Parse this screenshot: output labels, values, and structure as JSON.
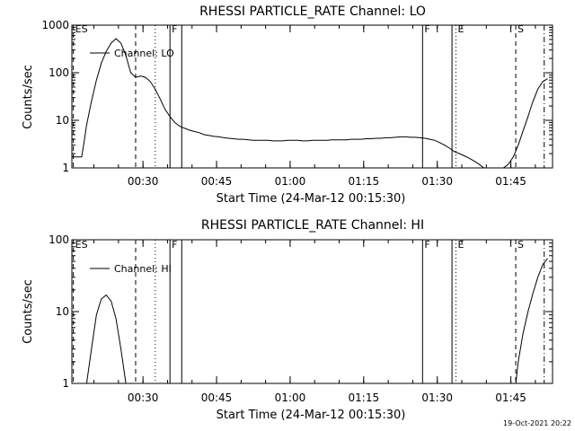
{
  "chart_data": [
    {
      "type": "line",
      "title": "RHESSI PARTICLE_RATE Channel: LO",
      "xlabel": "Start Time (24-Mar-12 00:15:30)",
      "ylabel": "Counts/sec",
      "yscale": "log",
      "ylim": [
        1,
        1000
      ],
      "xlim_min": [
        0,
        98
      ],
      "y_ticks": [
        {
          "label": "1",
          "value": 1
        },
        {
          "label": "10",
          "value": 10
        },
        {
          "label": "100",
          "value": 100
        },
        {
          "label": "1000",
          "value": 1000
        }
      ],
      "x_ticks": [
        {
          "label": "00:30",
          "value": 14.5
        },
        {
          "label": "00:45",
          "value": 29.5
        },
        {
          "label": "01:00",
          "value": 44.5
        },
        {
          "label": "01:15",
          "value": 59.5
        },
        {
          "label": "01:30",
          "value": 74.5
        },
        {
          "label": "01:45",
          "value": 89.5
        }
      ],
      "legend": "Channel: LO",
      "series": [
        {
          "name": "Channel: LO",
          "x": [
            0,
            1,
            2,
            2.5,
            3,
            4,
            5,
            6,
            7,
            8,
            9,
            10,
            11,
            12,
            13,
            14,
            15,
            16,
            17,
            18,
            19,
            20,
            21,
            22,
            23,
            24,
            25,
            26,
            27,
            28,
            29,
            30,
            31,
            32,
            33,
            34,
            35,
            36,
            37,
            38,
            39,
            40,
            41,
            42,
            43,
            44,
            45,
            46,
            47,
            48,
            49,
            50,
            51,
            52,
            53,
            54,
            55,
            56,
            57,
            58,
            59,
            60,
            61,
            62,
            63,
            64,
            65,
            66,
            67,
            68,
            69,
            70,
            71,
            72,
            73,
            74,
            75,
            76,
            77,
            78,
            79,
            80,
            81,
            82,
            83,
            84,
            85,
            86,
            87,
            88,
            89,
            90,
            91,
            92,
            93,
            94,
            95,
            96,
            97
          ],
          "y": [
            1.7,
            1.7,
            1.7,
            3.5,
            8,
            25,
            70,
            160,
            280,
            420,
            520,
            420,
            230,
            100,
            80,
            85,
            80,
            65,
            45,
            28,
            17,
            12,
            9,
            7.5,
            6.8,
            6.2,
            5.8,
            5.5,
            5.0,
            4.8,
            4.6,
            4.5,
            4.3,
            4.2,
            4.1,
            4.0,
            4.0,
            3.9,
            3.8,
            3.8,
            3.8,
            3.8,
            3.7,
            3.7,
            3.7,
            3.8,
            3.8,
            3.8,
            3.7,
            3.7,
            3.8,
            3.8,
            3.8,
            3.8,
            3.9,
            3.9,
            3.9,
            3.9,
            4.0,
            4.0,
            4.0,
            4.1,
            4.1,
            4.2,
            4.2,
            4.3,
            4.3,
            4.4,
            4.5,
            4.5,
            4.4,
            4.4,
            4.3,
            4.2,
            4.0,
            3.8,
            3.4,
            3.0,
            2.6,
            2.2,
            2.0,
            1.8,
            1.6,
            1.4,
            1.2,
            1.0,
            1.0,
            1.0,
            1.0,
            1.0,
            1.2,
            1.7,
            3.0,
            6.0,
            12,
            25,
            45,
            65,
            75
          ]
        }
      ],
      "markers": [
        {
          "label": "ES",
          "x": 0.3,
          "style": "dashed"
        },
        {
          "label": "",
          "x": 13.0,
          "style": "dashed"
        },
        {
          "label": "",
          "x": 17.0,
          "style": "dotted"
        },
        {
          "label": "F",
          "x": 20.0,
          "style": "solid"
        },
        {
          "label": "",
          "x": 22.4,
          "style": "solid"
        },
        {
          "label": "F",
          "x": 71.5,
          "style": "solid"
        },
        {
          "label": "",
          "x": 77.5,
          "style": "solid"
        },
        {
          "label": "E",
          "x": 78.3,
          "style": "dotted"
        },
        {
          "label": "S",
          "x": 90.5,
          "style": "dashed"
        },
        {
          "label": "",
          "x": 96.3,
          "style": "dashdot"
        }
      ]
    },
    {
      "type": "line",
      "title": "RHESSI PARTICLE_RATE Channel: HI",
      "xlabel": "Start Time (24-Mar-12 00:15:30)",
      "ylabel": "Counts/sec",
      "yscale": "log",
      "ylim": [
        1,
        100
      ],
      "xlim_min": [
        0,
        98
      ],
      "y_ticks": [
        {
          "label": "1",
          "value": 1
        },
        {
          "label": "10",
          "value": 10
        },
        {
          "label": "100",
          "value": 100
        }
      ],
      "x_ticks": [
        {
          "label": "00:30",
          "value": 14.5
        },
        {
          "label": "00:45",
          "value": 29.5
        },
        {
          "label": "01:00",
          "value": 44.5
        },
        {
          "label": "01:15",
          "value": 59.5
        },
        {
          "label": "01:30",
          "value": 74.5
        },
        {
          "label": "01:45",
          "value": 89.5
        }
      ],
      "legend": "Channel: HI",
      "series": [
        {
          "name": "Channel: HI",
          "x": [
            3,
            4,
            5,
            6,
            7,
            8,
            9,
            10,
            11,
            90.5,
            91,
            92,
            93,
            94,
            95,
            96,
            97
          ],
          "y": [
            1.0,
            3.0,
            9.0,
            15,
            17,
            14,
            8,
            3,
            1.0,
            1.0,
            2.0,
            5.0,
            10,
            18,
            30,
            45,
            55
          ],
          "segments": [
            [
              0,
              8
            ],
            [
              9,
              16
            ]
          ]
        }
      ],
      "markers": [
        {
          "label": "ES",
          "x": 0.3,
          "style": "dashed"
        },
        {
          "label": "",
          "x": 13.0,
          "style": "dashed"
        },
        {
          "label": "",
          "x": 17.0,
          "style": "dotted"
        },
        {
          "label": "F",
          "x": 20.0,
          "style": "solid"
        },
        {
          "label": "",
          "x": 22.4,
          "style": "solid"
        },
        {
          "label": "F",
          "x": 71.5,
          "style": "solid"
        },
        {
          "label": "",
          "x": 77.5,
          "style": "solid"
        },
        {
          "label": "E",
          "x": 78.3,
          "style": "dotted"
        },
        {
          "label": "S",
          "x": 90.5,
          "style": "dashed"
        },
        {
          "label": "",
          "x": 96.3,
          "style": "dashdot"
        }
      ]
    }
  ],
  "footer": {
    "date_stamp": "19-Oct-2021 20:22"
  }
}
